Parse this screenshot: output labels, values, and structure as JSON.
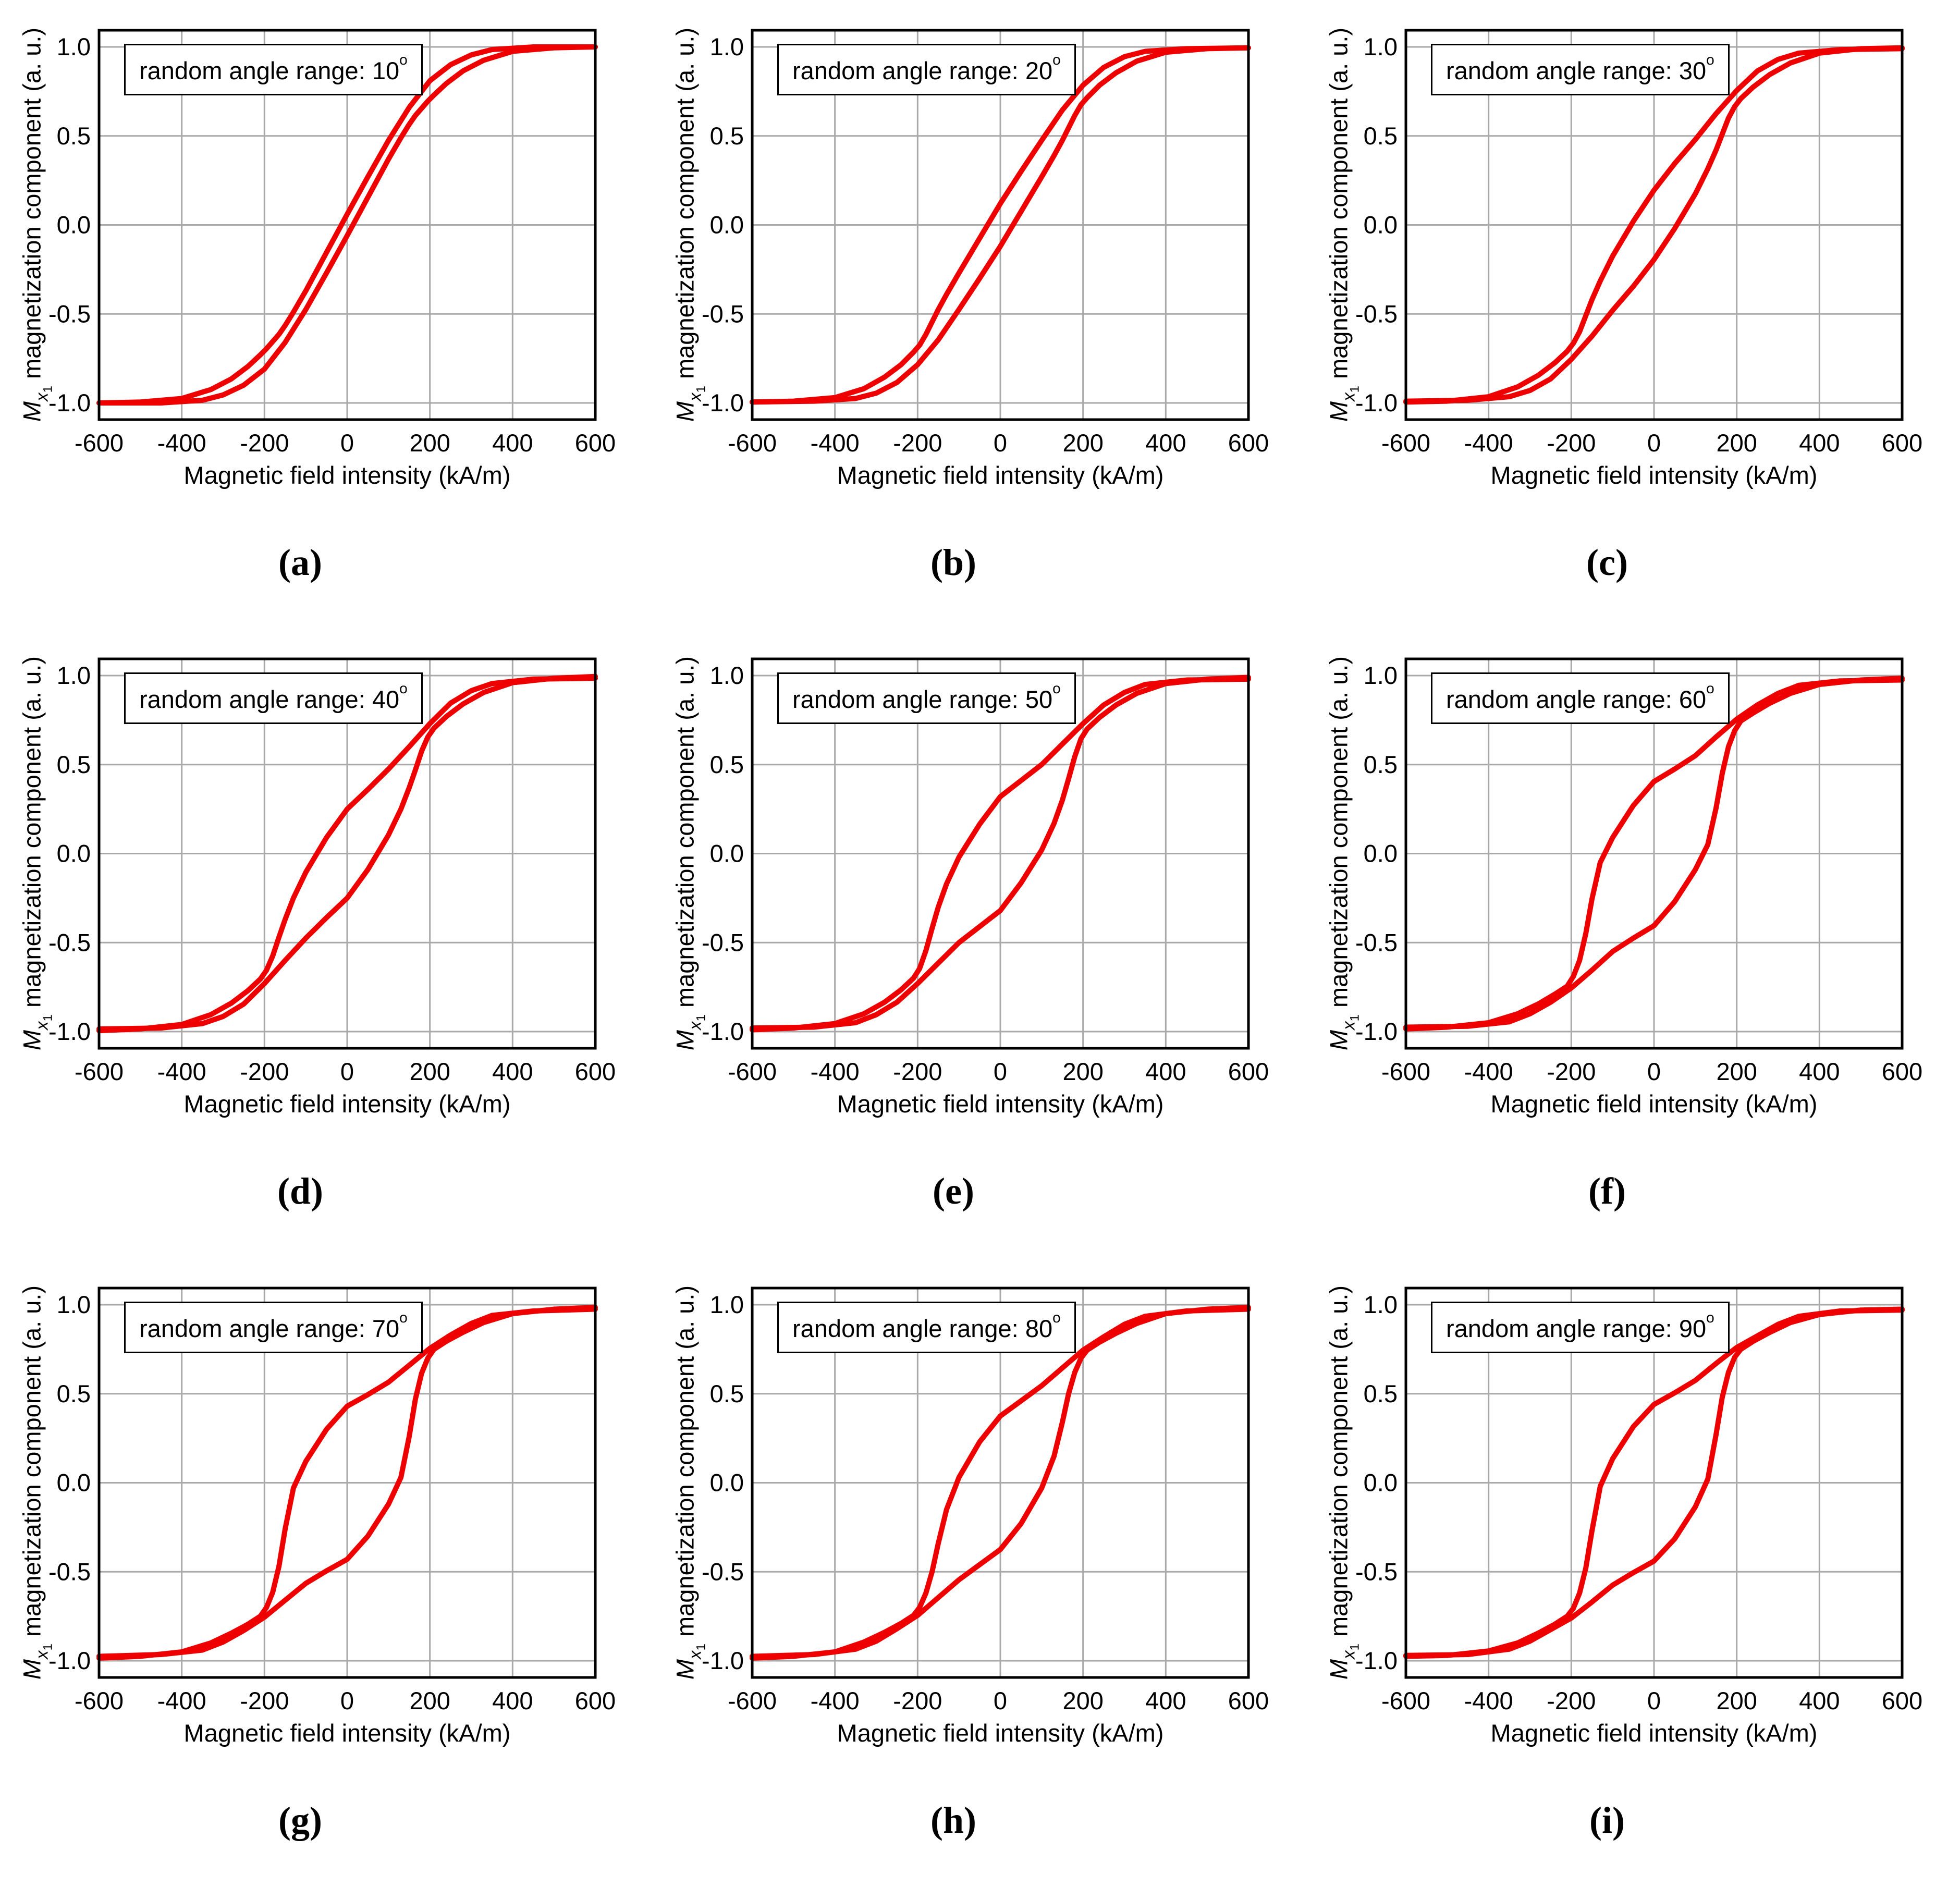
{
  "chart_data": {
    "type": "line",
    "layout": "3x3 grid of hysteresis loops",
    "common": {
      "xlabel": "Magnetic field intensity (kA/m)",
      "ylabel": "Mx1 magnetization component (a. u.)",
      "ylabel_m": "M",
      "ylabel_sub": "x",
      "ylabel_subsub": "1",
      "ylabel_rest": " magnetization component (a. u.)",
      "legend_prefix": "random angle range: ",
      "degree_symbol": "o",
      "xlim": [
        -600,
        600
      ],
      "ylim": [
        -1.1,
        1.1
      ],
      "x_ticks": [
        -600,
        -400,
        -200,
        0,
        200,
        400,
        600
      ],
      "y_ticks": [
        -1.0,
        -0.5,
        0.0,
        0.5,
        1.0
      ],
      "y_tick_labels": [
        "-1.0",
        "-0.5",
        "0.0",
        "0.5",
        "1.0"
      ],
      "grid": true,
      "curve_color": "#ee0000",
      "grid_color": "#a9a9a9",
      "frame_color": "#000000",
      "legend_position": "top-left inside plot",
      "branch_x": [
        600,
        450,
        350,
        300,
        250,
        200,
        150,
        100,
        50,
        0,
        -50,
        -100,
        -130,
        -150,
        -165,
        -180,
        -195,
        -210,
        -240,
        -280,
        -330,
        -400,
        -500,
        -600
      ],
      "lower_branch_rule": "lower (field-increasing) branch is the point-symmetric mirror (-x,-y) of upper_y over branch_x"
    },
    "charts": [
      {
        "caption": "(a)",
        "angle": "10",
        "legend_text": "random angle range: 10°",
        "upper_y": [
          1.0,
          1.0,
          0.985,
          0.955,
          0.9,
          0.81,
          0.66,
          0.475,
          0.27,
          0.06,
          -0.155,
          -0.37,
          -0.49,
          -0.565,
          -0.615,
          -0.655,
          -0.695,
          -0.73,
          -0.795,
          -0.865,
          -0.925,
          -0.975,
          -0.995,
          -1.0
        ]
      },
      {
        "caption": "(b)",
        "angle": "20",
        "legend_text": "random angle range: 20°",
        "upper_y": [
          0.995,
          0.99,
          0.975,
          0.945,
          0.885,
          0.785,
          0.645,
          0.475,
          0.3,
          0.12,
          -0.075,
          -0.27,
          -0.39,
          -0.475,
          -0.545,
          -0.615,
          -0.675,
          -0.715,
          -0.785,
          -0.855,
          -0.92,
          -0.97,
          -0.99,
          -0.995
        ]
      },
      {
        "caption": "(c)",
        "angle": "30",
        "legend_text": "random angle range: 30°",
        "upper_y": [
          0.99,
          0.985,
          0.965,
          0.93,
          0.865,
          0.755,
          0.625,
          0.48,
          0.345,
          0.195,
          0.02,
          -0.175,
          -0.315,
          -0.42,
          -0.51,
          -0.6,
          -0.665,
          -0.71,
          -0.775,
          -0.845,
          -0.91,
          -0.965,
          -0.99,
          -0.995
        ]
      },
      {
        "caption": "(d)",
        "angle": "40",
        "legend_text": "random angle range: 40°",
        "upper_y": [
          0.985,
          0.98,
          0.955,
          0.915,
          0.845,
          0.73,
          0.6,
          0.475,
          0.36,
          0.25,
          0.09,
          -0.105,
          -0.25,
          -0.37,
          -0.47,
          -0.575,
          -0.655,
          -0.705,
          -0.77,
          -0.84,
          -0.905,
          -0.96,
          -0.985,
          -0.995
        ]
      },
      {
        "caption": "(e)",
        "angle": "50",
        "legend_text": "random angle range: 50°",
        "upper_y": [
          0.98,
          0.975,
          0.95,
          0.905,
          0.835,
          0.73,
          0.615,
          0.5,
          0.41,
          0.32,
          0.165,
          -0.02,
          -0.17,
          -0.3,
          -0.42,
          -0.545,
          -0.645,
          -0.7,
          -0.765,
          -0.835,
          -0.9,
          -0.955,
          -0.98,
          -0.99
        ]
      },
      {
        "caption": "(f)",
        "angle": "60",
        "legend_text": "random angle range: 60°",
        "upper_y": [
          0.975,
          0.97,
          0.945,
          0.9,
          0.835,
          0.755,
          0.655,
          0.55,
          0.475,
          0.405,
          0.27,
          0.09,
          -0.05,
          -0.255,
          -0.45,
          -0.6,
          -0.69,
          -0.745,
          -0.79,
          -0.845,
          -0.9,
          -0.95,
          -0.975,
          -0.985
        ]
      },
      {
        "caption": "(g)",
        "angle": "70",
        "legend_text": "random angle range: 70°",
        "upper_y": [
          0.975,
          0.965,
          0.94,
          0.895,
          0.83,
          0.755,
          0.66,
          0.565,
          0.495,
          0.43,
          0.3,
          0.12,
          -0.03,
          -0.26,
          -0.47,
          -0.615,
          -0.7,
          -0.75,
          -0.795,
          -0.845,
          -0.9,
          -0.95,
          -0.975,
          -0.985
        ]
      },
      {
        "caption": "(h)",
        "angle": "80",
        "legend_text": "random angle range: 80°",
        "upper_y": [
          0.975,
          0.965,
          0.935,
          0.89,
          0.82,
          0.745,
          0.645,
          0.545,
          0.46,
          0.375,
          0.23,
          0.03,
          -0.15,
          -0.34,
          -0.5,
          -0.62,
          -0.7,
          -0.745,
          -0.79,
          -0.84,
          -0.895,
          -0.95,
          -0.975,
          -0.985
        ]
      },
      {
        "caption": "(i)",
        "angle": "90",
        "legend_text": "random angle range: 90°",
        "upper_y": [
          0.97,
          0.965,
          0.935,
          0.89,
          0.825,
          0.76,
          0.67,
          0.575,
          0.505,
          0.44,
          0.315,
          0.135,
          -0.02,
          -0.27,
          -0.48,
          -0.62,
          -0.705,
          -0.75,
          -0.795,
          -0.845,
          -0.9,
          -0.945,
          -0.97,
          -0.975
        ]
      }
    ]
  }
}
